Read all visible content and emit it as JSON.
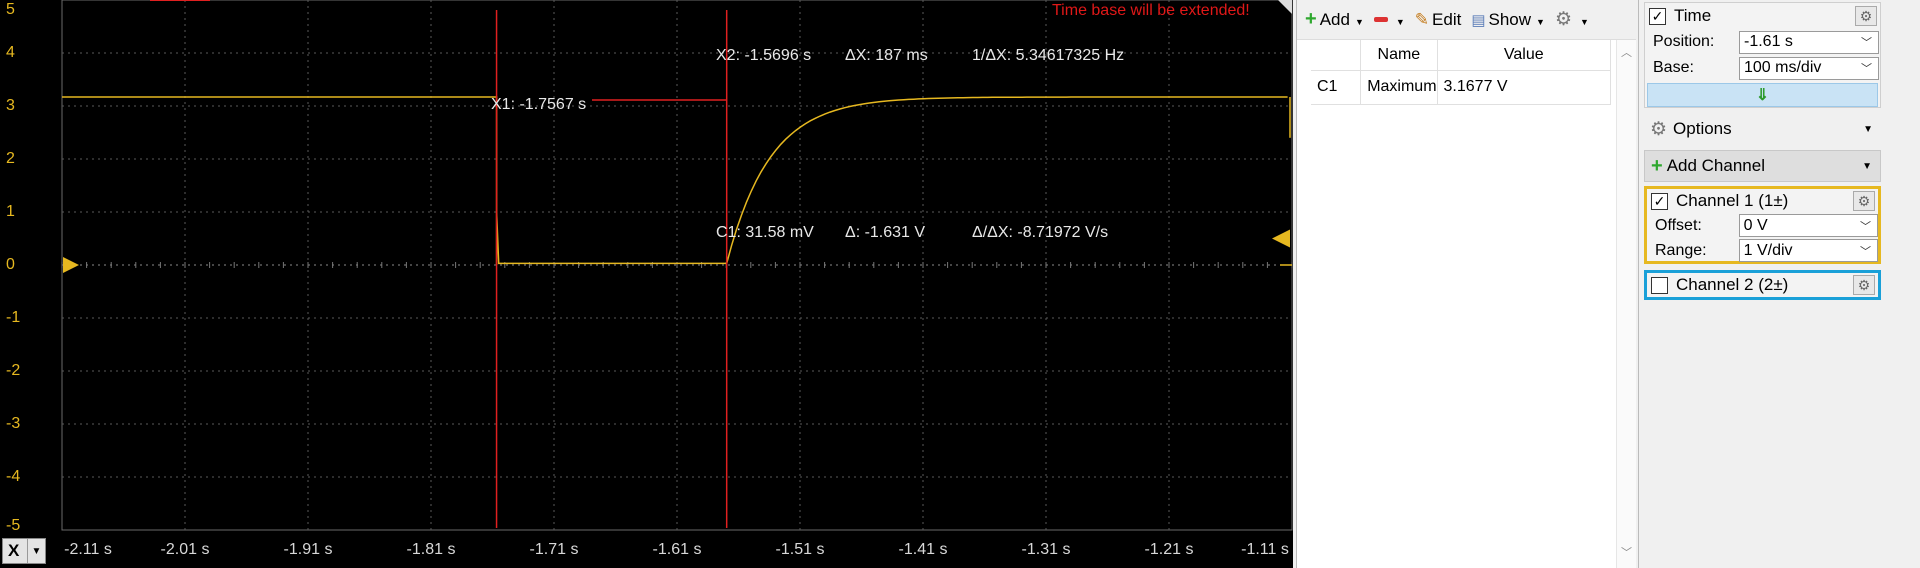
{
  "scope": {
    "warning": "Time base will be extended!",
    "y_ticks": [
      "5",
      "4",
      "3",
      "2",
      "1",
      "0",
      "-1",
      "-2",
      "-3",
      "-4",
      "-5"
    ],
    "x_ticks": [
      "-2.11 s",
      "-2.01 s",
      "-1.91 s",
      "-1.81 s",
      "-1.71 s",
      "-1.61 s",
      "-1.51 s",
      "-1.41 s",
      "-1.31 s",
      "-1.21 s",
      "-1.11 s"
    ],
    "x_axis_button": "X",
    "cursor_x1": "X1: -1.7567 s",
    "cursor_x2": "X2: -1.5696 s",
    "delta_x": "ΔX: 187 ms",
    "inv_delta_x": "1/ΔX: 5.34617325 Hz",
    "c1_value": "C1: 31.58 mV",
    "delta_v": "Δ: -1.631 V",
    "slope": "Δ/ΔX: -8.71972 V/s",
    "colors": {
      "trace": "#e6b820",
      "cursor": "#e02020",
      "grid": "#5a5a5a",
      "background": "#000000"
    },
    "trace_samples": {
      "t_unit": "s",
      "v_unit": "V",
      "points": [
        [
          -2.11,
          3.17
        ],
        [
          -1.7567,
          3.17
        ],
        [
          -1.7567,
          0.0
        ],
        [
          -1.7567,
          1.0
        ],
        [
          -1.755,
          0.03
        ],
        [
          -1.5696,
          0.03
        ],
        [
          -1.565,
          0.3
        ],
        [
          -1.56,
          0.9
        ],
        [
          -1.55,
          1.5
        ],
        [
          -1.54,
          1.95
        ],
        [
          -1.52,
          2.5
        ],
        [
          -1.5,
          2.8
        ],
        [
          -1.47,
          3.0
        ],
        [
          -1.44,
          3.1
        ],
        [
          -1.4,
          3.15
        ],
        [
          -1.3,
          3.17
        ],
        [
          -1.11,
          3.17
        ]
      ]
    }
  },
  "measurements": {
    "toolbar": {
      "add": "Add",
      "remove": "",
      "edit": "Edit",
      "show": "Show"
    },
    "columns": [
      "",
      "Name",
      "Value"
    ],
    "rows": [
      {
        "channel": "C1",
        "name": "Maximum",
        "value": "3.1677 V"
      }
    ]
  },
  "settings": {
    "time": {
      "title": "Time",
      "checked": true,
      "position_label": "Position:",
      "position_value": "-1.61 s",
      "base_label": "Base:",
      "base_value": "100 ms/div"
    },
    "options_label": "Options",
    "add_channel_label": "Add Channel",
    "channel1": {
      "title": "Channel 1 (1±)",
      "checked": true,
      "offset_label": "Offset:",
      "offset_value": "0 V",
      "range_label": "Range:",
      "range_value": "1 V/div",
      "color": "#e6b820"
    },
    "channel2": {
      "title": "Channel 2 (2±)",
      "checked": false,
      "color": "#1aa0d8"
    }
  }
}
